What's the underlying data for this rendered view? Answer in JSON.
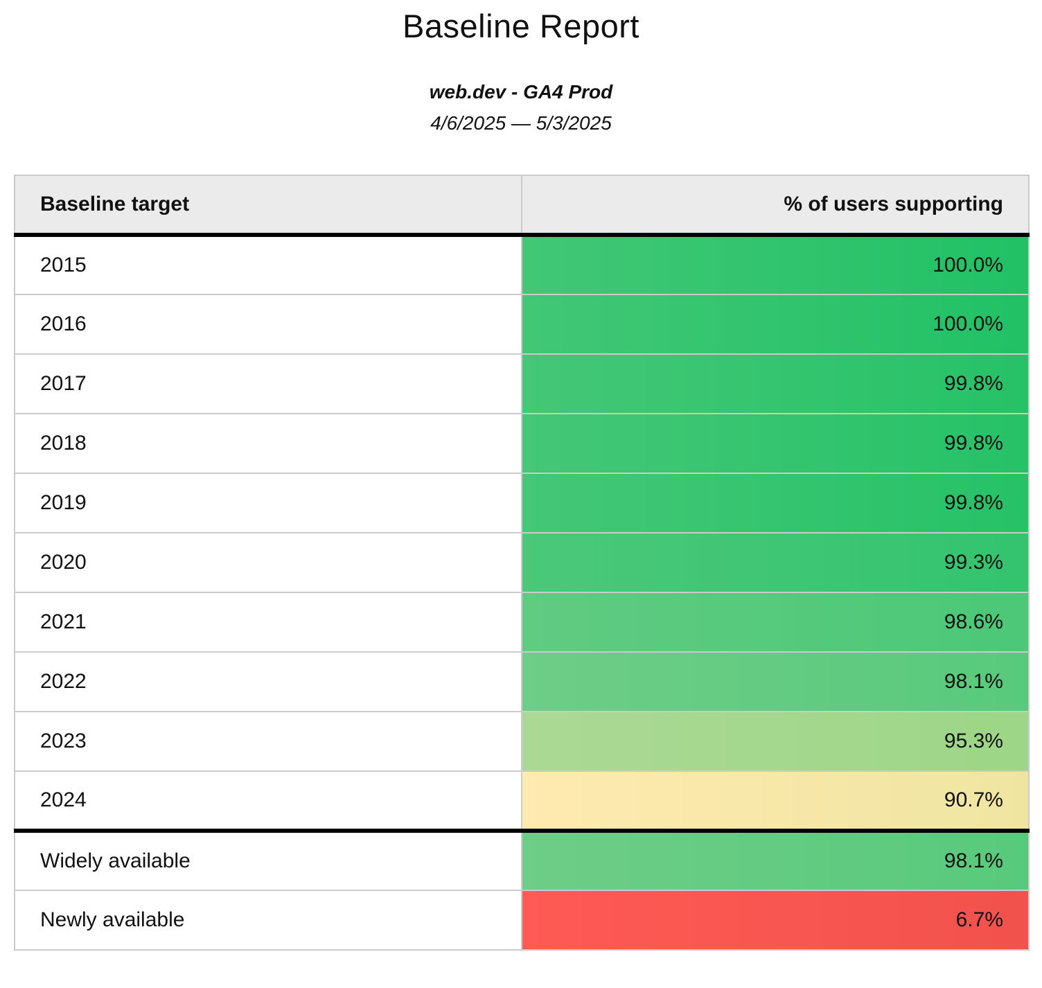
{
  "header": {
    "title": "Baseline Report",
    "subtitle": "web.dev - GA4 Prod",
    "date_range": "4/6/2025 — 5/3/2025"
  },
  "table": {
    "columns": [
      "Baseline target",
      "% of users supporting"
    ],
    "rows": [
      {
        "target": "2015",
        "percent": "100.0%",
        "color_from": "#42c776",
        "color_to": "#21c166",
        "divider_above": false
      },
      {
        "target": "2016",
        "percent": "100.0%",
        "color_from": "#42c776",
        "color_to": "#21c166",
        "divider_above": false
      },
      {
        "target": "2017",
        "percent": "99.8%",
        "color_from": "#44c777",
        "color_to": "#26c268",
        "divider_above": false
      },
      {
        "target": "2018",
        "percent": "99.8%",
        "color_from": "#44c777",
        "color_to": "#26c268",
        "divider_above": false
      },
      {
        "target": "2019",
        "percent": "99.8%",
        "color_from": "#44c777",
        "color_to": "#26c268",
        "divider_above": false
      },
      {
        "target": "2020",
        "percent": "99.3%",
        "color_from": "#4bc87a",
        "color_to": "#33c46f",
        "divider_above": false
      },
      {
        "target": "2021",
        "percent": "98.6%",
        "color_from": "#60cb82",
        "color_to": "#4bc878",
        "divider_above": false
      },
      {
        "target": "2022",
        "percent": "98.1%",
        "color_from": "#6ecd87",
        "color_to": "#58ca7c",
        "divider_above": false
      },
      {
        "target": "2023",
        "percent": "95.3%",
        "color_from": "#abd995",
        "color_to": "#9dd687",
        "divider_above": false
      },
      {
        "target": "2024",
        "percent": "90.7%",
        "color_from": "#ffeab0",
        "color_to": "#efe5a1",
        "divider_above": false
      },
      {
        "target": "Widely available",
        "percent": "98.1%",
        "color_from": "#6ecd87",
        "color_to": "#58ca7c",
        "divider_above": true
      },
      {
        "target": "Newly available",
        "percent": "6.7%",
        "color_from": "#ff5a55",
        "color_to": "#f2524c",
        "divider_above": false
      }
    ]
  },
  "colors": {
    "header_bg": "#ebebeb",
    "table_border": "#cbcbcb",
    "divider": "#000000",
    "text": "#111111"
  },
  "chart_data": {
    "type": "table",
    "title": "Baseline Report",
    "subtitle": "web.dev - GA4 Prod",
    "date_range": "4/6/2025 — 5/3/2025",
    "columns": [
      "Baseline target",
      "% of users supporting"
    ],
    "categories": [
      "2015",
      "2016",
      "2017",
      "2018",
      "2019",
      "2020",
      "2021",
      "2022",
      "2023",
      "2024",
      "Widely available",
      "Newly available"
    ],
    "values": [
      100.0,
      100.0,
      99.8,
      99.8,
      99.8,
      99.3,
      98.6,
      98.1,
      95.3,
      90.7,
      98.1,
      6.7
    ],
    "value_unit": "%",
    "color_coding": "green high support, yellow ~90%, red low support"
  }
}
